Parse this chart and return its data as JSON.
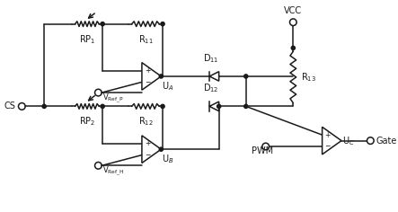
{
  "background_color": "#ffffff",
  "line_color": "#1a1a1a",
  "line_width": 1.1,
  "labels": {
    "RP1": "RP$_1$",
    "RP2": "RP$_2$",
    "R11": "R$_{11}$",
    "R12": "R$_{12}$",
    "R13": "R$_{13}$",
    "D11": "D$_{11}$",
    "D12": "D$_{12}$",
    "UA": "U$_A$",
    "UB": "U$_B$",
    "UC": "U$_C$",
    "VCC": "VCC",
    "CS": "CS",
    "Gate": "Gate",
    "PWM": "PWM",
    "VRefP": "V$_{\\mathrm{Ref\\_P}}$",
    "VRefH": "V$_{\\mathrm{Ref\\_H}}$",
    "plus": "+",
    "minus": "−"
  }
}
